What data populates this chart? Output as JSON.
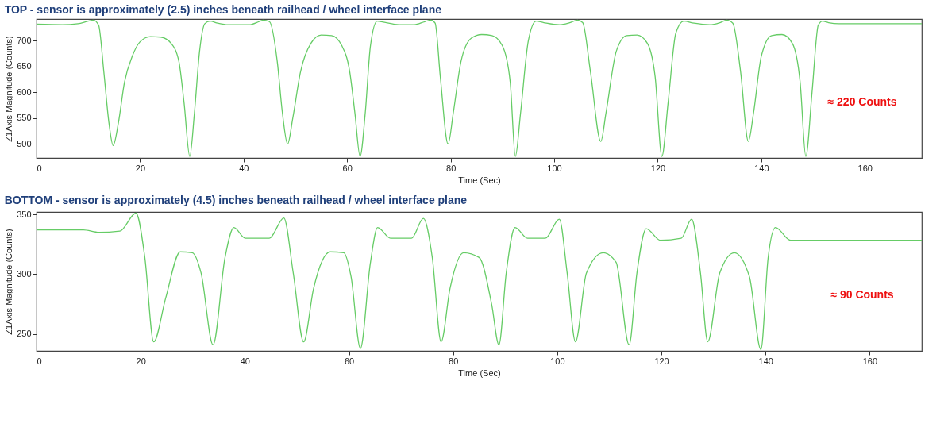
{
  "chart_data": [
    {
      "type": "line",
      "title": "TOP  -  sensor is approximately (2.5) inches beneath railhead / wheel interface plane",
      "xlabel": "Time (Sec)",
      "ylabel": "Z1Axis Magnitude (Counts)",
      "xlim": [
        0,
        171
      ],
      "xticks": [
        0,
        20,
        40,
        60,
        80,
        100,
        120,
        140,
        160
      ],
      "ylim": [
        473,
        742
      ],
      "yticks": [
        500,
        550,
        600,
        650,
        700
      ],
      "grid": false,
      "annotations": [
        "≈ 220 Counts"
      ],
      "series": [
        {
          "color": "#66cc66",
          "x": [
            0,
            5,
            8,
            10,
            11,
            12,
            13,
            14,
            14.8,
            15.8,
            17,
            18.5,
            20,
            22,
            24,
            26,
            27.5,
            28.5,
            29.6,
            30.5,
            31.5,
            32.5,
            33.5,
            35,
            37,
            41,
            43,
            43.8,
            45,
            46.5,
            47.5,
            48.5,
            49.5,
            51,
            53,
            55,
            57,
            59,
            60.5,
            61.5,
            62.5,
            63.5,
            64.5,
            65.8,
            67,
            70,
            73,
            75,
            76.2,
            77,
            78,
            79.5,
            80.5,
            82,
            84,
            86,
            88,
            90,
            91.5,
            92.5,
            93.5,
            95,
            96.5,
            98,
            101,
            103,
            104.5,
            105.5,
            107,
            109,
            110,
            112,
            114,
            116,
            118,
            119.5,
            120.8,
            122,
            123.5,
            125,
            127,
            130,
            132,
            133.3,
            134.5,
            136,
            137.5,
            138.5,
            140,
            142,
            144,
            146,
            147.5,
            148.6,
            149.8,
            151,
            151.8,
            153,
            155,
            171
          ],
          "values": [
            732,
            731,
            733,
            738,
            740,
            730,
            640,
            540,
            497,
            540,
            620,
            670,
            698,
            708,
            707,
            695,
            660,
            580,
            476,
            560,
            680,
            733,
            738,
            734,
            731,
            731,
            737,
            740,
            737,
            660,
            560,
            500,
            550,
            640,
            695,
            711,
            710,
            690,
            640,
            560,
            476,
            560,
            690,
            738,
            736,
            731,
            731,
            737,
            740,
            734,
            630,
            500,
            560,
            660,
            705,
            712,
            710,
            690,
            620,
            476,
            560,
            700,
            738,
            735,
            731,
            735,
            740,
            735,
            640,
            505,
            560,
            680,
            710,
            711,
            695,
            630,
            476,
            580,
            715,
            738,
            734,
            731,
            735,
            740,
            734,
            640,
            505,
            560,
            670,
            710,
            712,
            695,
            620,
            476,
            600,
            730,
            738,
            735,
            733,
            733
          ]
        }
      ]
    },
    {
      "type": "line",
      "title": "BOTTOM  -  sensor is approximately (4.5) inches beneath railhead / wheel interface plane",
      "xlabel": "Time (Sec)",
      "ylabel": "Z1Axis Magnitude (Counts)",
      "xlim": [
        0,
        170
      ],
      "xticks": [
        0,
        20,
        40,
        60,
        80,
        100,
        120,
        140,
        160
      ],
      "ylim": [
        236,
        352
      ],
      "yticks": [
        250,
        300,
        350
      ],
      "grid": false,
      "annotations": [
        "≈ 90 Counts"
      ],
      "series": [
        {
          "color": "#66cc66",
          "x": [
            0,
            9,
            12,
            16,
            19.1,
            20.8,
            22.5,
            24.8,
            27.6,
            29.9,
            31.6,
            33.9,
            36.2,
            37.9,
            40.1,
            44.7,
            47.5,
            49.3,
            51.3,
            53.2,
            56.4,
            59,
            60.4,
            62.2,
            64.1,
            65.5,
            68,
            72,
            74.3,
            76,
            77.7,
            79.4,
            82,
            85,
            87.4,
            88.8,
            90.2,
            91.9,
            94.3,
            97.7,
            100.4,
            101.9,
            103.5,
            105.6,
            108.8,
            111.3,
            113.8,
            115.3,
            117.1,
            119.8,
            123.8,
            125.8,
            127.5,
            128.9,
            131.2,
            134,
            136.9,
            139.1,
            140.5,
            141.9,
            144.8,
            170
          ],
          "values": [
            337,
            337,
            335,
            336,
            351,
            314,
            243.5,
            280,
            318.7,
            318,
            301,
            241,
            314,
            339,
            330,
            330,
            347,
            301,
            243.5,
            288,
            318.7,
            318,
            298,
            238,
            309,
            339,
            330,
            330,
            346.6,
            314,
            243.5,
            288,
            318,
            314,
            275,
            241,
            301,
            339,
            330,
            330,
            346,
            301,
            243.5,
            301,
            318,
            310,
            241,
            301,
            338,
            328.3,
            330,
            346,
            301,
            243.5,
            301,
            318,
            298,
            237,
            314,
            339,
            328.3,
            328.3
          ]
        }
      ]
    }
  ]
}
